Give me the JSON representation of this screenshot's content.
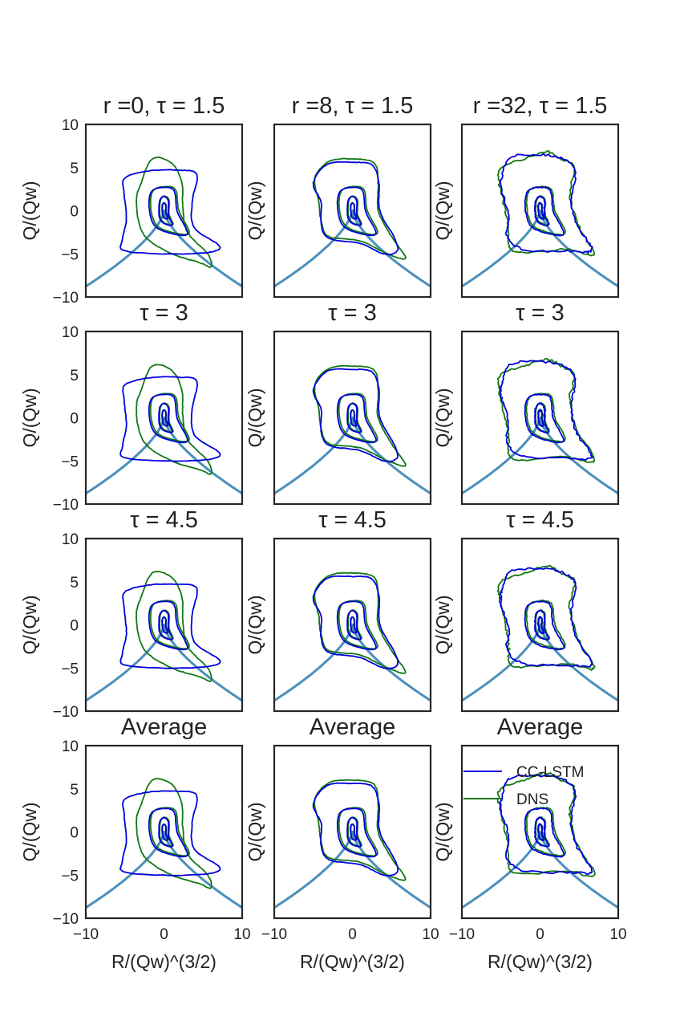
{
  "chart_data": {
    "type": "line",
    "layout": "4x3 grid",
    "xlabel": "R/(Qw)^(3/2)",
    "ylabel": "Q/(Qw)",
    "xlim": [
      -10,
      10
    ],
    "ylim": [
      -10,
      10
    ],
    "xticks": [
      "−10",
      "0",
      "10"
    ],
    "yticks": [
      "10",
      "5",
      "0",
      "−5",
      "−10"
    ],
    "grid": false,
    "legend": {
      "location": "top-right of bottom-right panel",
      "entries": [
        {
          "name": "CC-LSTM",
          "color": "#0000dd"
        },
        {
          "name": "DNS",
          "color": "#127812"
        }
      ]
    },
    "discriminant_color": "#4a8fbd",
    "series_colors": {
      "cc_lstm": "#0000dd",
      "dns": "#127812"
    },
    "columns": [
      "r =0",
      "r =8",
      "r =32"
    ],
    "rows": [
      {
        "title_suffix": "τ = 1.5",
        "combined_with_column": true
      },
      {
        "title_suffix": "τ = 3",
        "combined_with_column": false
      },
      {
        "title_suffix": "τ = 4.5",
        "combined_with_column": false
      },
      {
        "title_suffix": "Average",
        "combined_with_column": false
      }
    ],
    "panels": [
      {
        "row": 0,
        "col": 0,
        "title": "r =0, τ = 1.5"
      },
      {
        "row": 0,
        "col": 1,
        "title": "r =8, τ = 1.5"
      },
      {
        "row": 0,
        "col": 2,
        "title": "r =32, τ = 1.5"
      },
      {
        "row": 1,
        "col": 0,
        "title": "τ = 3"
      },
      {
        "row": 1,
        "col": 1,
        "title": "τ = 3"
      },
      {
        "row": 1,
        "col": 2,
        "title": "τ = 3"
      },
      {
        "row": 2,
        "col": 0,
        "title": "τ = 4.5"
      },
      {
        "row": 2,
        "col": 1,
        "title": "τ = 4.5"
      },
      {
        "row": 2,
        "col": 2,
        "title": "τ = 4.5"
      },
      {
        "row": 3,
        "col": 0,
        "title": "Average"
      },
      {
        "row": 3,
        "col": 1,
        "title": "Average"
      },
      {
        "row": 3,
        "col": 2,
        "title": "Average"
      }
    ],
    "contour_shapes": {
      "outer": {
        "c0": {
          "cc_lstm": [
            [
              -5,
              3.8
            ],
            [
              -2,
              4.6
            ],
            [
              1.8,
              4.7
            ],
            [
              4.2,
              4.2
            ],
            [
              3.6,
              1
            ],
            [
              3.9,
              -2
            ],
            [
              7.2,
              -4.3
            ],
            [
              3,
              -5
            ],
            [
              -4.8,
              -4.7
            ],
            [
              -5.3,
              -3.3
            ],
            [
              -4.8,
              -1
            ],
            [
              -5.1,
              2
            ]
          ],
          "dns": [
            [
              -3,
              3
            ],
            [
              -1.5,
              6
            ],
            [
              1,
              5.5
            ],
            [
              2.3,
              3.2
            ],
            [
              2.4,
              0.5
            ],
            [
              3,
              -2.5
            ],
            [
              5.6,
              -5
            ],
            [
              6,
              -6.5
            ],
            [
              4.5,
              -6
            ],
            [
              1,
              -5
            ],
            [
              -2.2,
              -3.2
            ],
            [
              -3.3,
              -1
            ],
            [
              -3.5,
              1.5
            ]
          ]
        },
        "c1": {
          "cc_lstm": [
            [
              -5,
              3.2
            ],
            [
              -3.2,
              5.4
            ],
            [
              0,
              5.6
            ],
            [
              2.5,
              5.3
            ],
            [
              3.4,
              3.2
            ],
            [
              3.5,
              0
            ],
            [
              5.4,
              -3.2
            ],
            [
              5.7,
              -4.7
            ],
            [
              4,
              -5
            ],
            [
              1,
              -3.8
            ],
            [
              -3,
              -3.2
            ],
            [
              -4,
              -1.5
            ],
            [
              -4,
              1
            ]
          ],
          "dns": [
            [
              -4.8,
              3.8
            ],
            [
              -3,
              5.7
            ],
            [
              0,
              6
            ],
            [
              2.8,
              5.5
            ],
            [
              3.3,
              3
            ],
            [
              3.3,
              0
            ],
            [
              5,
              -3
            ],
            [
              6.8,
              -5.5
            ],
            [
              4.5,
              -5
            ],
            [
              1,
              -3.5
            ],
            [
              -3,
              -3
            ],
            [
              -4,
              -1.2
            ],
            [
              -4.3,
              1
            ]
          ]
        },
        "c2": {
          "cc_lstm": [
            [
              -4.8,
              4.2
            ],
            [
              -3.8,
              6.2
            ],
            [
              0,
              6.5
            ],
            [
              3,
              6
            ],
            [
              4.5,
              4.5
            ],
            [
              4,
              1.5
            ],
            [
              4.6,
              -1.5
            ],
            [
              6.6,
              -4.5
            ],
            [
              4,
              -4.7
            ],
            [
              -2,
              -4.5
            ],
            [
              -4.2,
              -3
            ],
            [
              -4,
              -0.5
            ],
            [
              -5,
              2.5
            ]
          ],
          "dns": [
            [
              -5,
              5
            ],
            [
              -2,
              6
            ],
            [
              0.8,
              6.8
            ],
            [
              2.7,
              6
            ],
            [
              4.4,
              5
            ],
            [
              3.8,
              2
            ],
            [
              4.8,
              -1.5
            ],
            [
              6.9,
              -5
            ],
            [
              3.2,
              -4.5
            ],
            [
              -3.3,
              -4.8
            ],
            [
              -4,
              -2.6
            ],
            [
              -4.3,
              -0.5
            ],
            [
              -5.2,
              3
            ]
          ]
        }
      },
      "middle": [
        [
          -1.8,
          0.5
        ],
        [
          -1.5,
          2.3
        ],
        [
          0,
          2.8
        ],
        [
          1.4,
          2.4
        ],
        [
          1.8,
          0
        ],
        [
          3.1,
          -2.6
        ],
        [
          0.5,
          -2.4
        ],
        [
          -1.2,
          -1.5
        ]
      ],
      "inner": [
        [
          -0.6,
          0
        ],
        [
          -0.5,
          1.2
        ],
        [
          0,
          1.7
        ],
        [
          0.6,
          1.2
        ],
        [
          0.6,
          -0.4
        ],
        [
          1.1,
          -1.6
        ],
        [
          0,
          -1.4
        ],
        [
          -0.5,
          -0.8
        ]
      ],
      "innermost": [
        [
          -0.2,
          -0.1
        ],
        [
          -0.2,
          0.6
        ],
        [
          0,
          0.9
        ],
        [
          0.25,
          0.6
        ],
        [
          0.25,
          -0.2
        ],
        [
          0.5,
          -0.9
        ],
        [
          0,
          -0.8
        ]
      ]
    },
    "discriminant_curve": "Q = -3*(|R|/2)^(2/3)"
  }
}
